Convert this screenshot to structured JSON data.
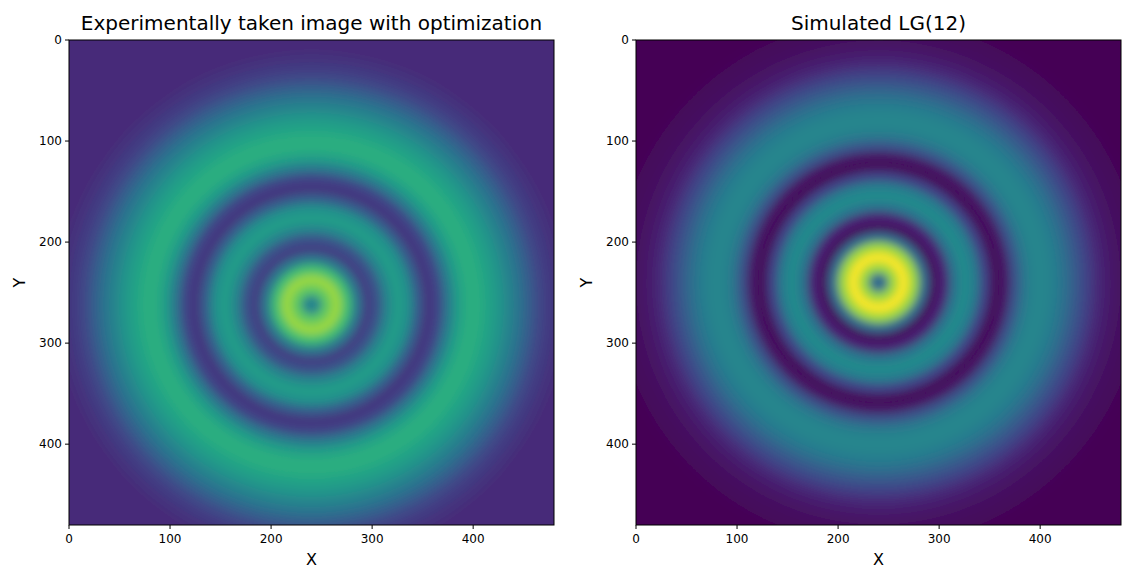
{
  "chart_data": [
    {
      "type": "heatmap",
      "title": "Experimentally taken image with optimization",
      "x_label": "X",
      "y_label": "Y",
      "xlim": [
        0,
        480
      ],
      "ylim": [
        480,
        0
      ],
      "xticks": [
        0,
        100,
        200,
        300,
        400
      ],
      "yticks": [
        0,
        100,
        200,
        300,
        400
      ],
      "center": [
        240,
        262
      ],
      "radial_profile": {
        "r": [
          0,
          10,
          20,
          30,
          40,
          50,
          60,
          70,
          80,
          90,
          100,
          110,
          120,
          130,
          140,
          150,
          160,
          170,
          180,
          190,
          200,
          210,
          220,
          230,
          240,
          250,
          260,
          270,
          280,
          290,
          300,
          310,
          320,
          330,
          340,
          350
        ],
        "values": [
          0.3,
          0.45,
          0.75,
          0.85,
          0.7,
          0.4,
          0.18,
          0.25,
          0.45,
          0.55,
          0.5,
          0.3,
          0.15,
          0.2,
          0.4,
          0.55,
          0.62,
          0.62,
          0.58,
          0.52,
          0.45,
          0.38,
          0.3,
          0.22,
          0.17,
          0.14,
          0.12,
          0.12,
          0.12,
          0.12,
          0.12,
          0.12,
          0.12,
          0.12,
          0.12,
          0.12
        ]
      }
    },
    {
      "type": "heatmap",
      "title": "Simulated LG(12)",
      "x_label": "X",
      "y_label": "Y",
      "xlim": [
        0,
        480
      ],
      "ylim": [
        480,
        0
      ],
      "xticks": [
        0,
        100,
        200,
        300,
        400
      ],
      "yticks": [
        0,
        100,
        200,
        300,
        400
      ],
      "center": [
        240,
        240
      ],
      "radial_profile": {
        "r": [
          0,
          10,
          20,
          30,
          40,
          50,
          60,
          70,
          80,
          90,
          100,
          110,
          120,
          130,
          140,
          150,
          160,
          170,
          180,
          190,
          200,
          210,
          220,
          230,
          240,
          250,
          260,
          270,
          280,
          290,
          300,
          310,
          320,
          330,
          340,
          350
        ],
        "values": [
          0.05,
          0.35,
          0.85,
          1.0,
          0.85,
          0.35,
          0.03,
          0.1,
          0.38,
          0.48,
          0.42,
          0.2,
          0.02,
          0.05,
          0.25,
          0.4,
          0.45,
          0.45,
          0.42,
          0.36,
          0.28,
          0.2,
          0.13,
          0.08,
          0.05,
          0.03,
          0.02,
          0.01,
          0,
          0,
          0,
          0,
          0,
          0,
          0,
          0
        ]
      }
    }
  ]
}
